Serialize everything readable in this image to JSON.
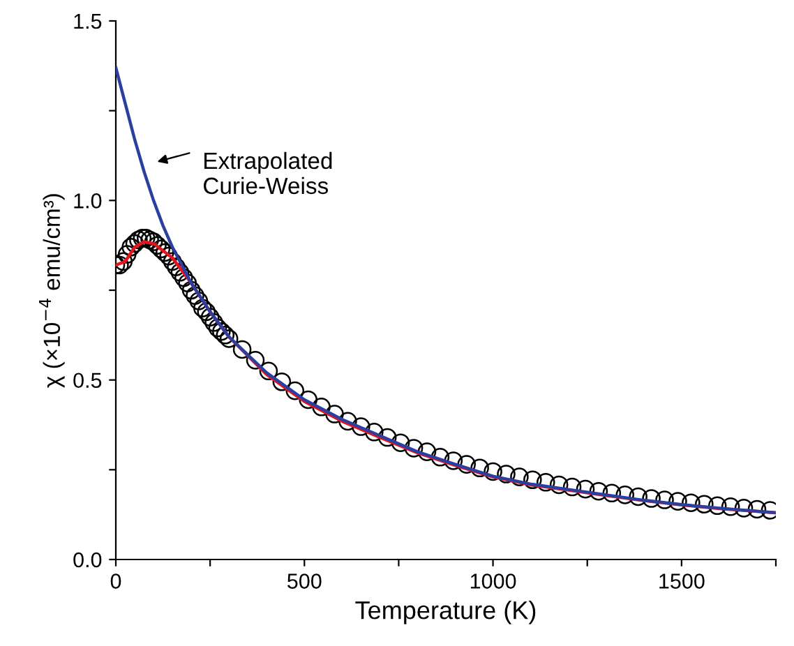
{
  "chart_data": {
    "type": "line",
    "xlabel": "Temperature (K)",
    "ylabel": "χ (×10$^{−4}$ emu/cm³)",
    "xlim": [
      0,
      1750
    ],
    "ylim": [
      0,
      1.5
    ],
    "xticks": [
      0,
      {
        "value": 250,
        "label": null
      },
      500,
      {
        "value": 750,
        "label": null
      },
      1000,
      {
        "value": 1250,
        "label": null
      },
      1500,
      {
        "value": 1750,
        "label": null
      }
    ],
    "yticks": [
      {
        "value": 0,
        "label": "0.0"
      },
      {
        "value": 0.25,
        "label": null
      },
      0.5,
      {
        "value": 0.75,
        "label": null
      },
      {
        "value": 1.0,
        "label": "1.0"
      },
      {
        "value": 1.25,
        "label": null
      },
      1.5
    ],
    "grid": false,
    "legend": false,
    "annotations": [
      "Extrapolated\nCurie-Weiss"
    ],
    "series": [
      {
        "type": "scatter",
        "marker": "circle",
        "color": "#000000",
        "x": [
          0,
          10,
          20,
          30,
          40,
          50,
          60,
          70,
          80,
          90,
          100,
          110,
          120,
          130,
          140,
          150,
          160,
          170,
          180,
          190,
          200,
          210,
          220,
          230,
          240,
          250,
          260,
          270,
          280,
          290,
          300,
          335,
          370,
          405,
          440,
          475,
          510,
          545,
          580,
          615,
          650,
          685,
          720,
          755,
          790,
          825,
          860,
          895,
          930,
          965,
          1000,
          1035,
          1070,
          1105,
          1140,
          1175,
          1210,
          1245,
          1280,
          1315,
          1350,
          1385,
          1420,
          1455,
          1490,
          1525,
          1560,
          1595,
          1630,
          1665,
          1700,
          1735
        ],
        "values": [
          0.82,
          0.82,
          0.83,
          0.85,
          0.87,
          0.88,
          0.89,
          0.895,
          0.895,
          0.89,
          0.885,
          0.875,
          0.865,
          0.855,
          0.845,
          0.83,
          0.815,
          0.8,
          0.785,
          0.77,
          0.75,
          0.735,
          0.72,
          0.7,
          0.69,
          0.675,
          0.66,
          0.645,
          0.635,
          0.625,
          0.615,
          0.585,
          0.555,
          0.525,
          0.495,
          0.47,
          0.445,
          0.425,
          0.405,
          0.385,
          0.37,
          0.355,
          0.34,
          0.325,
          0.31,
          0.3,
          0.285,
          0.275,
          0.265,
          0.255,
          0.245,
          0.238,
          0.23,
          0.222,
          0.215,
          0.208,
          0.202,
          0.196,
          0.19,
          0.185,
          0.18,
          0.175,
          0.17,
          0.166,
          0.162,
          0.158,
          0.154,
          0.15,
          0.147,
          0.143,
          0.14,
          0.137
        ]
      },
      {
        "line_style": "solid",
        "color": "#e8141c",
        "x": [
          0,
          25,
          50,
          75,
          100,
          150,
          200,
          250,
          300,
          400,
          500,
          600,
          700,
          800,
          900,
          1000,
          1100,
          1200,
          1300,
          1400,
          1500,
          1600,
          1750
        ],
        "values": [
          0.82,
          0.83,
          0.87,
          0.885,
          0.88,
          0.84,
          0.77,
          0.69,
          0.62,
          0.515,
          0.44,
          0.385,
          0.34,
          0.297,
          0.262,
          0.23,
          0.208,
          0.193,
          0.178,
          0.164,
          0.152,
          0.142,
          0.13
        ]
      },
      {
        "line_style": "solid",
        "color": "#2b3fa0",
        "x": [
          0,
          25,
          50,
          75,
          100,
          125,
          150,
          200,
          250,
          300,
          400,
          500,
          600,
          700,
          800,
          900,
          1000,
          1100,
          1200,
          1300,
          1400,
          1500,
          1600,
          1750
        ],
        "values": [
          1.37,
          1.27,
          1.17,
          1.08,
          1.0,
          0.93,
          0.87,
          0.77,
          0.69,
          0.62,
          0.52,
          0.445,
          0.39,
          0.345,
          0.3,
          0.265,
          0.232,
          0.21,
          0.195,
          0.18,
          0.165,
          0.153,
          0.143,
          0.13
        ]
      }
    ]
  }
}
